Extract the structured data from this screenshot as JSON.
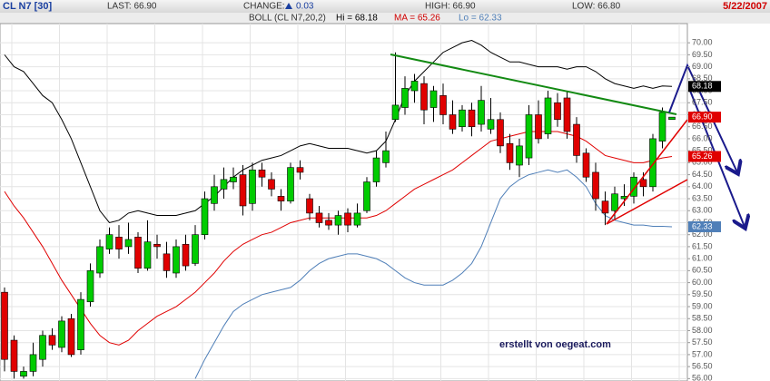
{
  "header": {
    "symbol": "CL N7 [30]",
    "last": "LAST: 66.90",
    "change_label": "CHANGE:",
    "change": "0.03",
    "high": "HIGH: 66.90",
    "low": "LOW: 66.80",
    "date": "5/22/2007",
    "indicator": "BOLL (CL N7,20,2)",
    "hi": "Hi = 68.18",
    "ma": "MA = 65.26",
    "lo": "Lo = 62.33",
    "watermark": "erstellt von oegeat.com"
  },
  "chart_data": {
    "type": "candlestick",
    "up_color": "#00cc00",
    "down_color": "#e00000",
    "grid": true,
    "ylim": [
      55.9,
      70.8
    ],
    "yticks": [
      {
        "value": 56,
        "label": "56.00"
      },
      {
        "value": 56.5,
        "label": "56.50"
      },
      {
        "value": 57,
        "label": "57.00"
      },
      {
        "value": 57.5,
        "label": "57.50"
      },
      {
        "value": 58,
        "label": "58.00"
      },
      {
        "value": 58.5,
        "label": "58.50"
      },
      {
        "value": 59,
        "label": "59.00"
      },
      {
        "value": 59.5,
        "label": "59.50"
      },
      {
        "value": 60,
        "label": "60.00"
      },
      {
        "value": 60.5,
        "label": "60.50"
      },
      {
        "value": 61,
        "label": "61.00"
      },
      {
        "value": 61.5,
        "label": "61.50"
      },
      {
        "value": 62,
        "label": "62.00"
      },
      {
        "value": 62.5,
        "label": "62.50"
      },
      {
        "value": 63,
        "label": "63.00"
      },
      {
        "value": 63.5,
        "label": "63.50"
      },
      {
        "value": 64,
        "label": "64.00"
      },
      {
        "value": 64.5,
        "label": "64.50"
      },
      {
        "value": 65,
        "label": "65.00"
      },
      {
        "value": 65.5,
        "label": "65.50"
      },
      {
        "value": 66,
        "label": "66.00"
      },
      {
        "value": 66.5,
        "label": "66.50"
      },
      {
        "value": 67,
        "label": "67.00"
      },
      {
        "value": 67.5,
        "label": "67.50"
      },
      {
        "value": 68,
        "label": "68.00"
      },
      {
        "value": 68.5,
        "label": "68.50"
      },
      {
        "value": 69,
        "label": "69.00"
      },
      {
        "value": 69.5,
        "label": "69.50"
      },
      {
        "value": 70,
        "label": "70.00"
      }
    ],
    "open": [
      59.6,
      57.6,
      56.1,
      56.3,
      56.8,
      57.8,
      57.3,
      58.5,
      57.2,
      59.2,
      60.4,
      61.4,
      61.9,
      61.5,
      61.9,
      60.6,
      61.6,
      61.2,
      60.4,
      61.6,
      60.8,
      62.0,
      63.3,
      63.9,
      64.2,
      64.5,
      63.3,
      64.7,
      64.3,
      63.6,
      63.4,
      64.8,
      63.5,
      62.9,
      62.6,
      62.4,
      62.9,
      62.4,
      63.0,
      64.2,
      65.0,
      66.8,
      67.3,
      68.0,
      68.3,
      67.3,
      67.8,
      67.0,
      66.5,
      67.2,
      66.6,
      66.4,
      66.8,
      65.8,
      64.9,
      65.2,
      67.0,
      66.2,
      67.5,
      67.7,
      66.6,
      65.4,
      64.6,
      63.4,
      63.0,
      63.5,
      63.6,
      64.3,
      64.0,
      65.9,
      66.8
    ],
    "high": [
      59.8,
      57.8,
      56.5,
      57.5,
      58.0,
      58.1,
      58.6,
      58.7,
      59.6,
      60.8,
      61.8,
      62.3,
      62.4,
      62.5,
      62.1,
      62.6,
      62.0,
      61.7,
      61.8,
      62.0,
      62.4,
      63.8,
      64.5,
      64.8,
      64.8,
      64.9,
      65.0,
      65.0,
      64.6,
      63.9,
      65.0,
      65.1,
      63.7,
      63.2,
      62.9,
      63.0,
      63.1,
      63.3,
      64.4,
      65.5,
      66.3,
      69.6,
      68.6,
      68.7,
      68.6,
      68.2,
      68.3,
      67.6,
      67.4,
      67.5,
      68.2,
      67.7,
      67.1,
      66.2,
      66.0,
      67.4,
      67.6,
      68.0,
      67.9,
      68.0,
      66.9,
      65.6,
      65.0,
      63.8,
      64.0,
      64.1,
      64.6,
      64.6,
      66.2,
      67.3,
      66.9
    ],
    "low": [
      56.3,
      56.0,
      56.0,
      56.1,
      56.5,
      57.2,
      57.1,
      56.9,
      57.0,
      59.0,
      60.2,
      61.2,
      61.0,
      61.2,
      60.4,
      60.5,
      61.0,
      60.2,
      60.2,
      60.5,
      60.7,
      61.8,
      63.0,
      63.5,
      63.9,
      62.8,
      63.0,
      64.0,
      63.6,
      63.0,
      63.3,
      64.3,
      62.6,
      62.3,
      62.2,
      62.0,
      62.1,
      62.3,
      62.9,
      64.0,
      64.8,
      66.7,
      67.0,
      67.5,
      66.6,
      66.7,
      66.6,
      66.2,
      66.3,
      66.1,
      66.3,
      66.2,
      65.4,
      64.7,
      64.4,
      64.9,
      65.8,
      66.0,
      66.5,
      66.0,
      65.0,
      64.2,
      63.0,
      62.4,
      62.6,
      63.2,
      63.3,
      63.6,
      63.8,
      65.6,
      66.8
    ],
    "close": [
      56.8,
      56.3,
      56.3,
      57.0,
      57.8,
      57.4,
      58.4,
      57.0,
      59.3,
      60.5,
      61.5,
      62.0,
      61.4,
      61.8,
      60.6,
      61.7,
      61.5,
      60.5,
      61.5,
      60.7,
      62.0,
      63.5,
      64.0,
      64.3,
      64.4,
      63.2,
      64.7,
      64.4,
      63.9,
      63.4,
      64.8,
      64.6,
      62.9,
      62.5,
      62.4,
      62.8,
      62.4,
      62.9,
      64.2,
      65.2,
      65.5,
      67.4,
      68.1,
      68.4,
      67.2,
      68.0,
      67.0,
      66.4,
      67.2,
      66.5,
      67.6,
      66.8,
      65.7,
      65.0,
      65.7,
      67.0,
      66.0,
      67.7,
      66.8,
      66.3,
      65.3,
      64.4,
      63.5,
      62.9,
      63.7,
      63.6,
      64.4,
      64.0,
      66.0,
      67.1,
      66.9
    ],
    "bands": [
      {
        "color": "#000000",
        "values": [
          69.5,
          69.0,
          68.8,
          68.3,
          67.8,
          67.5,
          66.8,
          66.0,
          65.0,
          64.0,
          63.0,
          62.5,
          62.6,
          62.9,
          63.0,
          62.9,
          62.8,
          62.8,
          62.8,
          62.9,
          63.0,
          63.3,
          63.6,
          64.0,
          64.4,
          64.7,
          64.9,
          65.1,
          65.2,
          65.3,
          65.5,
          65.7,
          65.8,
          65.7,
          65.6,
          65.6,
          65.6,
          65.5,
          65.4,
          65.5,
          65.9,
          66.8,
          67.8,
          68.4,
          68.8,
          69.2,
          69.6,
          69.8,
          70.0,
          70.1,
          69.9,
          69.6,
          69.4,
          69.2,
          69.2,
          69.1,
          69.0,
          69.0,
          69.0,
          68.9,
          69.0,
          69.0,
          68.8,
          68.5,
          68.3,
          68.2,
          68.1,
          68.2,
          68.1,
          68.2,
          68.18
        ]
      },
      {
        "color": "#e00000",
        "values": [
          63.8,
          63.2,
          62.7,
          62.1,
          61.5,
          60.8,
          60.1,
          59.5,
          58.9,
          58.3,
          57.8,
          57.5,
          57.4,
          57.6,
          58.0,
          58.3,
          58.6,
          58.8,
          59.0,
          59.3,
          59.6,
          60.0,
          60.4,
          60.9,
          61.3,
          61.6,
          61.8,
          62.0,
          62.1,
          62.3,
          62.5,
          62.6,
          62.7,
          62.7,
          62.7,
          62.7,
          62.7,
          62.7,
          62.7,
          62.8,
          63.0,
          63.3,
          63.6,
          63.9,
          64.1,
          64.3,
          64.5,
          64.7,
          65.0,
          65.3,
          65.6,
          65.9,
          66.0,
          66.1,
          66.2,
          66.3,
          66.3,
          66.3,
          66.3,
          66.2,
          66.1,
          65.9,
          65.6,
          65.3,
          65.2,
          65.1,
          65.0,
          65.0,
          65.1,
          65.2,
          65.26
        ]
      },
      {
        "color": "#4f7fb8",
        "values": [
          null,
          null,
          null,
          null,
          null,
          null,
          null,
          null,
          null,
          null,
          null,
          null,
          null,
          null,
          null,
          null,
          null,
          null,
          null,
          null,
          56.0,
          56.8,
          57.5,
          58.2,
          58.8,
          59.1,
          59.3,
          59.5,
          59.6,
          59.7,
          59.8,
          60.1,
          60.5,
          60.8,
          61.0,
          61.1,
          61.2,
          61.2,
          61.1,
          61.0,
          60.8,
          60.5,
          60.2,
          60.0,
          59.9,
          59.9,
          59.9,
          60.1,
          60.4,
          60.8,
          61.5,
          62.5,
          63.5,
          64.0,
          64.3,
          64.5,
          64.6,
          64.7,
          64.6,
          64.7,
          64.4,
          64.0,
          63.3,
          62.8,
          62.6,
          62.5,
          62.4,
          62.4,
          62.35,
          62.35,
          62.33
        ]
      }
    ],
    "last_value_labels": [
      {
        "value": 68.18,
        "label": "68.18",
        "color": "#000000"
      },
      {
        "value": 66.9,
        "label": "66.90",
        "color": "#e00000"
      },
      {
        "value": 65.26,
        "label": "65.26",
        "color": "#e00000"
      },
      {
        "value": 62.33,
        "label": "62.33",
        "color": "#4f7fb8"
      }
    ]
  }
}
